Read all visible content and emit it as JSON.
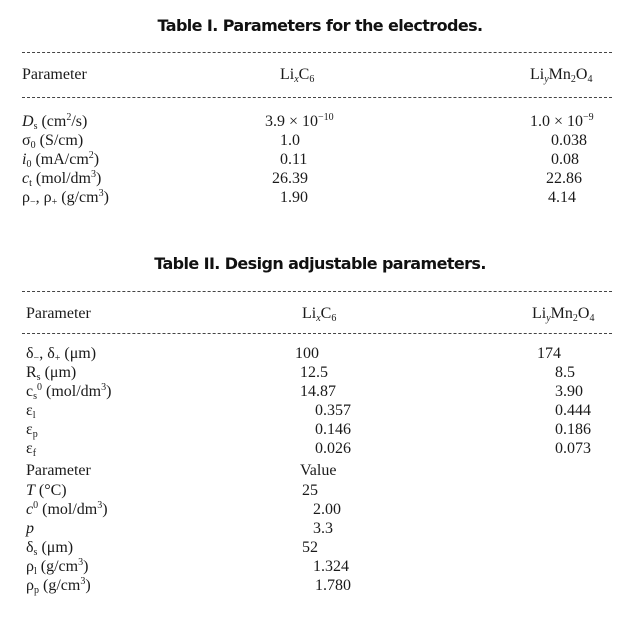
{
  "table1": {
    "title": "Table I. Parameters for the electrodes.",
    "header": {
      "parameter": "Parameter",
      "col1": [
        [
          "Li",
          ""
        ],
        [
          "x",
          "sub-i"
        ],
        [
          "C",
          ""
        ],
        [
          "6",
          "sub"
        ]
      ],
      "col2": [
        [
          "Li",
          ""
        ],
        [
          "y",
          "sub-i"
        ],
        [
          "Mn",
          ""
        ],
        [
          "2",
          "sub"
        ],
        [
          "O",
          ""
        ],
        [
          "4",
          "sub"
        ]
      ]
    },
    "rows": [
      {
        "label": [
          [
            "D",
            "i"
          ],
          [
            "s",
            "sub"
          ],
          [
            " (cm",
            ""
          ],
          [
            "2",
            "sup"
          ],
          [
            "/s)",
            ""
          ]
        ],
        "col1": [
          [
            "3.9 × 10",
            ""
          ],
          [
            "−10",
            "sup"
          ]
        ],
        "col2": [
          [
            "1.0 × 10",
            ""
          ],
          [
            "−9",
            "sup"
          ]
        ]
      },
      {
        "label": [
          [
            "σ",
            ""
          ],
          [
            "0",
            "sub"
          ],
          [
            " (S/cm)",
            ""
          ]
        ],
        "col1": [
          [
            "1.0",
            ""
          ]
        ],
        "col2": [
          [
            "0.038",
            ""
          ]
        ]
      },
      {
        "label": [
          [
            "i",
            "i"
          ],
          [
            "0",
            "sub"
          ],
          [
            " (mA/cm",
            ""
          ],
          [
            "2",
            "sup"
          ],
          [
            ")",
            ""
          ]
        ],
        "col1": [
          [
            "0.11",
            ""
          ]
        ],
        "col2": [
          [
            "0.08",
            ""
          ]
        ]
      },
      {
        "label": [
          [
            "c",
            "i"
          ],
          [
            "t",
            "sub"
          ],
          [
            " (mol/dm",
            ""
          ],
          [
            "3",
            "sup"
          ],
          [
            ")",
            ""
          ]
        ],
        "col1": [
          [
            "26.39",
            ""
          ]
        ],
        "col2": [
          [
            "22.86",
            ""
          ]
        ]
      },
      {
        "label": [
          [
            "ρ",
            ""
          ],
          [
            "−",
            "sub"
          ],
          [
            ", ρ",
            ""
          ],
          [
            "+",
            "sub"
          ],
          [
            " (g/cm",
            ""
          ],
          [
            "3",
            "sup"
          ],
          [
            ")",
            ""
          ]
        ],
        "col1": [
          [
            "1.90",
            ""
          ]
        ],
        "col2": [
          [
            "4.14",
            ""
          ]
        ]
      }
    ]
  },
  "table2": {
    "title": "Table II. Design adjustable parameters.",
    "header": {
      "parameter": "Parameter",
      "col1": [
        [
          "Li",
          ""
        ],
        [
          "x",
          "sub-i"
        ],
        [
          "C",
          ""
        ],
        [
          "6",
          "sub"
        ]
      ],
      "col2": [
        [
          "Li",
          ""
        ],
        [
          "y",
          "sub-i"
        ],
        [
          "Mn",
          ""
        ],
        [
          "2",
          "sub"
        ],
        [
          "O",
          ""
        ],
        [
          "4",
          "sub"
        ]
      ]
    },
    "rows": [
      {
        "label": [
          [
            "δ",
            ""
          ],
          [
            "−",
            "sub"
          ],
          [
            ", δ",
            ""
          ],
          [
            "+",
            "sub"
          ],
          [
            " (μm)",
            ""
          ]
        ],
        "col1": [
          [
            "100",
            ""
          ]
        ],
        "col2": [
          [
            "174",
            ""
          ]
        ]
      },
      {
        "label": [
          [
            "R",
            ""
          ],
          [
            "s",
            "sub"
          ],
          [
            " (μm)",
            ""
          ]
        ],
        "col1": [
          [
            "12.5",
            ""
          ]
        ],
        "col2": [
          [
            "8.5",
            ""
          ]
        ]
      },
      {
        "label": [
          [
            "c",
            ""
          ],
          [
            "s",
            "sub"
          ],
          [
            "0",
            "sup"
          ],
          [
            " (mol/dm",
            ""
          ],
          [
            "3",
            "sup"
          ],
          [
            ")",
            ""
          ]
        ],
        "col1": [
          [
            "14.87",
            ""
          ]
        ],
        "col2": [
          [
            "3.90",
            ""
          ]
        ]
      },
      {
        "label": [
          [
            "ε",
            ""
          ],
          [
            "l",
            "sub"
          ]
        ],
        "col1": [
          [
            "0.357",
            ""
          ]
        ],
        "col2": [
          [
            "0.444",
            ""
          ]
        ]
      },
      {
        "label": [
          [
            "ε",
            ""
          ],
          [
            "p",
            "sub"
          ]
        ],
        "col1": [
          [
            "0.146",
            ""
          ]
        ],
        "col2": [
          [
            "0.186",
            ""
          ]
        ]
      },
      {
        "label": [
          [
            "ε",
            ""
          ],
          [
            "f",
            "sub"
          ]
        ],
        "col1": [
          [
            "0.026",
            ""
          ]
        ],
        "col2": [
          [
            "0.073",
            ""
          ]
        ]
      },
      {
        "label": [
          [
            "Parameter",
            ""
          ]
        ],
        "col1": [
          [
            "Value",
            ""
          ]
        ],
        "col2": []
      },
      {
        "label": [
          [
            "T",
            "i"
          ],
          [
            " (°C)",
            ""
          ]
        ],
        "col1": [
          [
            "25",
            ""
          ]
        ],
        "col2": []
      },
      {
        "label": [
          [
            "c",
            "i"
          ],
          [
            "0",
            "sup"
          ],
          [
            " (mol/dm",
            ""
          ],
          [
            "3",
            "sup"
          ],
          [
            ")",
            ""
          ]
        ],
        "col1": [
          [
            "2.00",
            ""
          ]
        ],
        "col2": []
      },
      {
        "label": [
          [
            "p",
            "i"
          ]
        ],
        "col1": [
          [
            "3.3",
            ""
          ]
        ],
        "col2": []
      },
      {
        "label": [
          [
            "δ",
            ""
          ],
          [
            "s",
            "sub"
          ],
          [
            " (μm)",
            ""
          ]
        ],
        "col1": [
          [
            "52",
            ""
          ]
        ],
        "col2": []
      },
      {
        "label": [
          [
            "ρ",
            ""
          ],
          [
            "l",
            "sub"
          ],
          [
            " (g/cm",
            ""
          ],
          [
            "3",
            "sup"
          ],
          [
            ")",
            ""
          ]
        ],
        "col1": [
          [
            "1.324",
            ""
          ]
        ],
        "col2": []
      },
      {
        "label": [
          [
            "ρ",
            ""
          ],
          [
            "p",
            "sub"
          ],
          [
            " (g/cm",
            ""
          ],
          [
            "3",
            "sup"
          ],
          [
            ")",
            ""
          ]
        ],
        "col1": [
          [
            "1.780",
            ""
          ]
        ],
        "col2": []
      }
    ]
  }
}
